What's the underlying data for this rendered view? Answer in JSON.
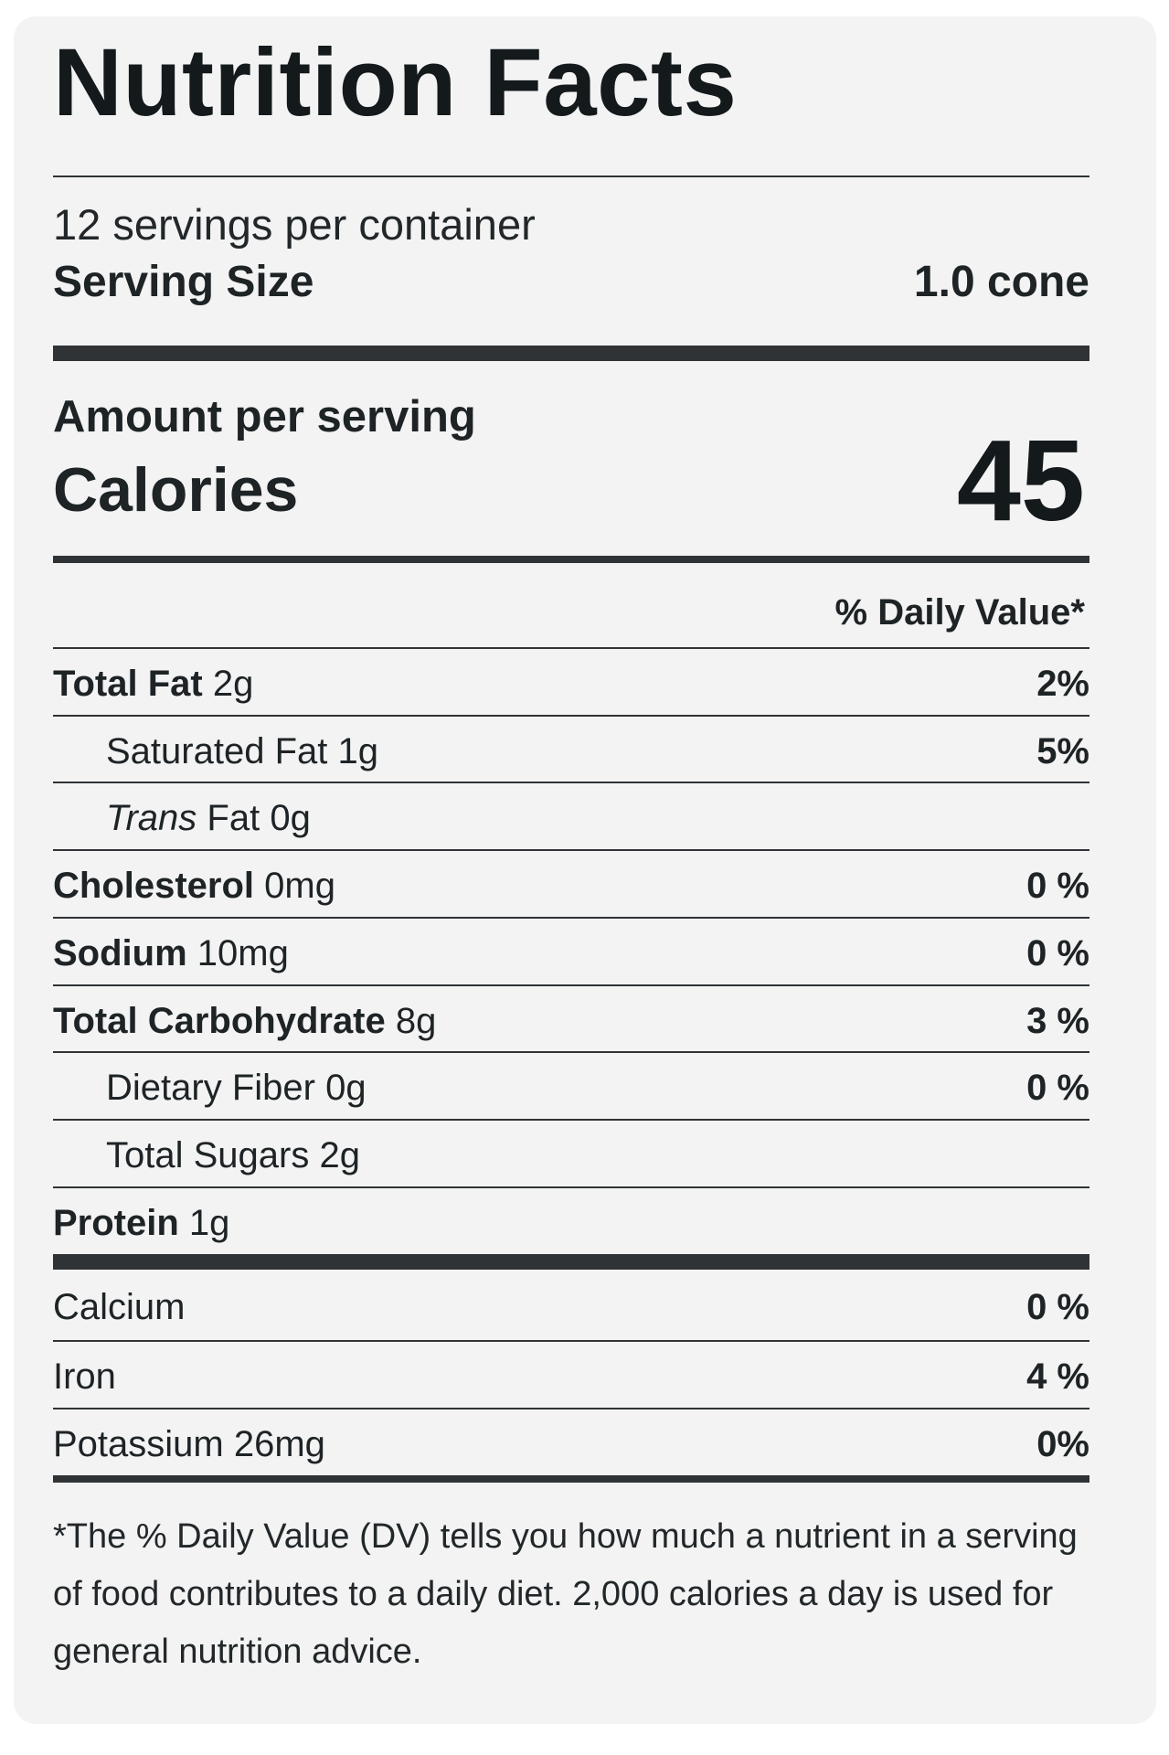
{
  "title": "Nutrition Facts",
  "servings_per_container": "12 servings per container",
  "serving_size": {
    "label": "Serving Size",
    "value": "1.0 cone"
  },
  "amount_per_serving": "Amount per serving",
  "calories": {
    "label": "Calories",
    "value": "45"
  },
  "daily_value_header": "% Daily Value*",
  "nutrients": [
    {
      "name": "Total Fat",
      "amount": "2g",
      "dv": "2%"
    },
    {
      "name": "Saturated Fat",
      "amount": "1g",
      "dv": "5%"
    },
    {
      "name_italic": "Trans",
      "name": "Fat",
      "amount": "0g",
      "dv": ""
    },
    {
      "name": "Cholesterol",
      "amount": "0mg",
      "dv": "0 %"
    },
    {
      "name": "Sodium",
      "amount": "10mg",
      "dv": "0 %"
    },
    {
      "name": "Total Carbohydrate",
      "amount": "8g",
      "dv": "3 %"
    },
    {
      "name": "Dietary Fiber",
      "amount": "0g",
      "dv": "0 %"
    },
    {
      "name": "Total Sugars",
      "amount": "2g",
      "dv": ""
    },
    {
      "name": "Protein",
      "amount": "1g",
      "dv": ""
    }
  ],
  "minerals": [
    {
      "name": "Calcium",
      "dv": "0 %"
    },
    {
      "name": "Iron",
      "dv": "4 %"
    },
    {
      "name": "Potassium 26mg",
      "dv": "0%"
    }
  ],
  "footnote": "*The % Daily Value (DV) tells you how much a nutrient in a serving of food contributes to a daily diet. 2,000 calories a day is used for general nutrition advice."
}
